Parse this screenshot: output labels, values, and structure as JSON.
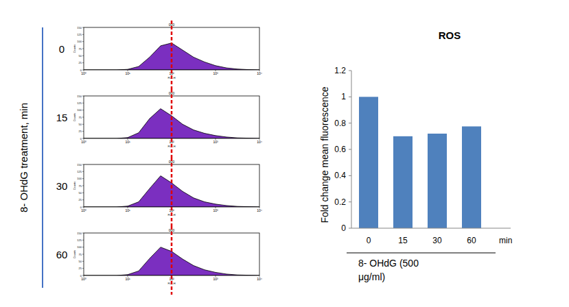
{
  "panel_label": "8- OHdG treatment, min",
  "chart_data": [
    {
      "type": "area",
      "title": "000",
      "row_label": "0",
      "xlabel": "FL1-H",
      "ylabel": "Counts",
      "log": "x",
      "color": "#7b2fc0",
      "x": [
        1,
        1.78,
        3.16,
        5.62,
        10,
        17.8,
        31.6,
        56.2,
        100,
        178,
        316,
        562,
        1000,
        1778,
        3162,
        5623,
        10000
      ],
      "values": [
        0,
        0,
        0,
        0,
        2,
        12,
        45,
        85,
        95,
        70,
        45,
        28,
        15,
        7,
        3,
        1,
        0
      ],
      "xlim": [
        1,
        10000
      ],
      "xticks": [
        {
          "value": 1,
          "label": "10⁰"
        },
        {
          "value": 10,
          "label": "10¹"
        },
        {
          "value": 100,
          "label": "10²"
        },
        {
          "value": 1000,
          "label": "10³"
        },
        {
          "value": 10000,
          "label": "10⁴"
        }
      ],
      "ylim": [
        0,
        150
      ],
      "yticks": [
        0,
        25,
        50,
        75,
        100,
        125,
        150
      ],
      "reference_x": 100
    },
    {
      "type": "area",
      "title": "000",
      "row_label": "15",
      "xlabel": "FL1-H",
      "ylabel": "Counts",
      "log": "x",
      "color": "#7b2fc0",
      "x": [
        1,
        1.78,
        3.16,
        5.62,
        10,
        17.8,
        31.6,
        56.2,
        100,
        178,
        316,
        562,
        1000,
        1778,
        3162,
        5623,
        10000
      ],
      "values": [
        0,
        0,
        0,
        0,
        3,
        20,
        70,
        105,
        80,
        50,
        30,
        18,
        10,
        5,
        2,
        1,
        0
      ],
      "xlim": [
        1,
        10000
      ],
      "xticks": [
        {
          "value": 1,
          "label": "10⁰"
        },
        {
          "value": 10,
          "label": "10¹"
        },
        {
          "value": 100,
          "label": "10²"
        },
        {
          "value": 1000,
          "label": "10³"
        },
        {
          "value": 10000,
          "label": "10⁴"
        }
      ],
      "ylim": [
        0,
        150
      ],
      "yticks": [
        0,
        25,
        50,
        75,
        100,
        125,
        150
      ],
      "reference_x": 100
    },
    {
      "type": "area",
      "title": "000",
      "row_label": "30",
      "xlabel": "FL1-H",
      "ylabel": "Counts",
      "log": "x",
      "color": "#7b2fc0",
      "x": [
        1,
        1.78,
        3.16,
        5.62,
        10,
        17.8,
        31.6,
        56.2,
        100,
        178,
        316,
        562,
        1000,
        1778,
        3162,
        5623,
        10000
      ],
      "values": [
        0,
        0,
        0,
        0,
        3,
        18,
        65,
        110,
        85,
        55,
        32,
        18,
        10,
        5,
        2,
        1,
        0
      ],
      "xlim": [
        1,
        10000
      ],
      "xticks": [
        {
          "value": 1,
          "label": "10⁰"
        },
        {
          "value": 10,
          "label": "10¹"
        },
        {
          "value": 100,
          "label": "10²"
        },
        {
          "value": 1000,
          "label": "10³"
        },
        {
          "value": 10000,
          "label": "10⁴"
        }
      ],
      "ylim": [
        0,
        150
      ],
      "yticks": [
        0,
        25,
        50,
        75,
        100,
        125,
        150
      ],
      "reference_x": 100
    },
    {
      "type": "area",
      "title": "000",
      "row_label": "60",
      "xlabel": "FL1-H",
      "ylabel": "Counts",
      "log": "x",
      "color": "#7b2fc0",
      "x": [
        1,
        1.78,
        3.16,
        5.62,
        10,
        17.8,
        31.6,
        56.2,
        100,
        178,
        316,
        562,
        1000,
        1778,
        3162,
        5623,
        10000
      ],
      "values": [
        0,
        0,
        0,
        0,
        3,
        16,
        60,
        100,
        85,
        58,
        35,
        20,
        11,
        5,
        2,
        1,
        0
      ],
      "xlim": [
        1,
        10000
      ],
      "xticks": [
        {
          "value": 1,
          "label": "10⁰"
        },
        {
          "value": 10,
          "label": "10¹"
        },
        {
          "value": 100,
          "label": "10²"
        },
        {
          "value": 1000,
          "label": "10³"
        },
        {
          "value": 10000,
          "label": "10⁴"
        }
      ],
      "ylim": [
        0,
        150
      ],
      "yticks": [
        0,
        25,
        50,
        75,
        100,
        125,
        150
      ],
      "reference_x": 100
    },
    {
      "type": "bar",
      "title": "ROS",
      "ylabel": "Fold change mean fluorescence",
      "xlabel": "8- OHdG (500 μg/ml)",
      "x_unit": "min",
      "categories": [
        "0",
        "15",
        "30",
        "60"
      ],
      "values": [
        1,
        0.7,
        0.72,
        0.775
      ],
      "color": "#4f81bd",
      "ylim": [
        0,
        1.2
      ],
      "yticks": [
        0,
        0.2,
        0.4,
        0.6,
        0.8,
        1,
        1.2
      ],
      "grid": false
    }
  ]
}
